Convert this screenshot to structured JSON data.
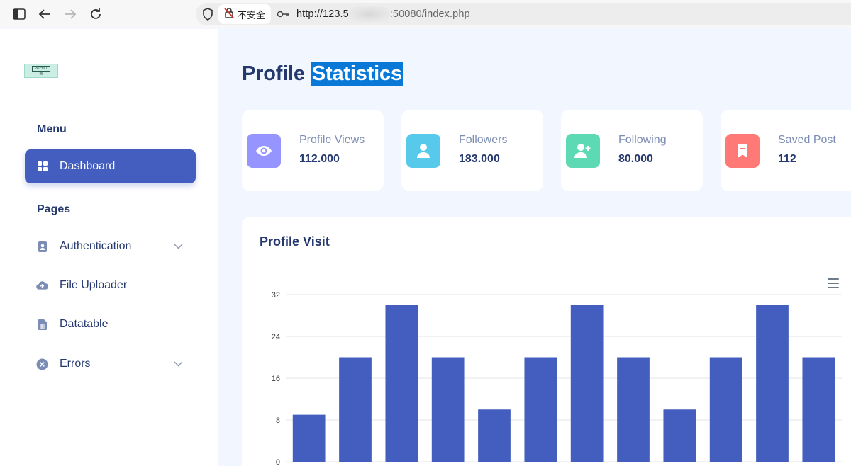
{
  "browser": {
    "insecure_label": "不安全",
    "url_prefix": "http://123.5",
    "url_suffix": ":50080/index.php"
  },
  "sidebar": {
    "logo_text": "Portal",
    "logo_sub": "图",
    "menu_title": "Menu",
    "pages_title": "Pages",
    "items": [
      {
        "label": "Dashboard",
        "icon": "grid-icon",
        "active": true
      },
      {
        "label": "Authentication",
        "icon": "person-badge-icon",
        "has_submenu": true
      },
      {
        "label": "File Uploader",
        "icon": "cloud-upload-icon"
      },
      {
        "label": "Datatable",
        "icon": "spreadsheet-icon"
      },
      {
        "label": "Errors",
        "icon": "x-circle-icon",
        "has_submenu": true
      }
    ]
  },
  "page": {
    "title_word1": "Profile",
    "title_word2": "Statistics"
  },
  "stats": [
    {
      "label": "Profile Views",
      "value": "112.000",
      "icon": "eye-icon",
      "color": "#9694ff"
    },
    {
      "label": "Followers",
      "value": "183.000",
      "icon": "person-icon",
      "color": "#57caeb"
    },
    {
      "label": "Following",
      "value": "80.000",
      "icon": "person-add-icon",
      "color": "#5ddab4"
    },
    {
      "label": "Saved Post",
      "value": "112",
      "icon": "bookmark-icon",
      "color": "#ff7976"
    }
  ],
  "chart_data": {
    "type": "bar",
    "title": "Profile Visit",
    "values": [
      9,
      20,
      30,
      20,
      10,
      20,
      30,
      20,
      10,
      20,
      30,
      20
    ],
    "ylim": [
      0,
      32
    ],
    "yticks": [
      0,
      8,
      16,
      24,
      32
    ],
    "grid": true,
    "color": "#435ebe"
  }
}
